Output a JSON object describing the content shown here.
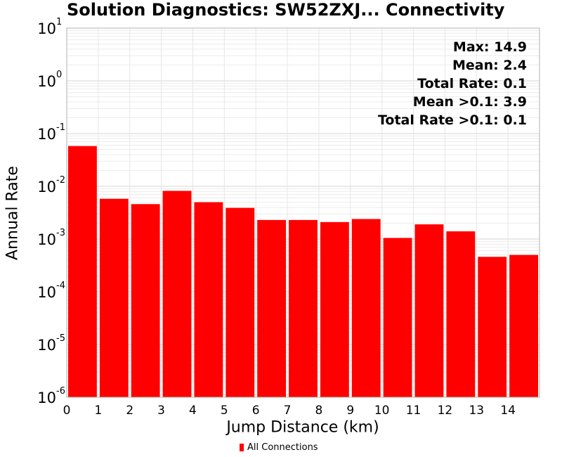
{
  "chart_data": {
    "type": "bar",
    "title": "Solution Diagnostics: SW52ZXJ... Connectivity",
    "xlabel": "Jump Distance (km)",
    "ylabel": "Annual Rate",
    "xlim": [
      0,
      15
    ],
    "ylim": [
      1e-06,
      10
    ],
    "y_scale": "log",
    "x_tick_labels": [
      "0",
      "1",
      "2",
      "3",
      "4",
      "5",
      "6",
      "7",
      "8",
      "9",
      "10",
      "11",
      "12",
      "13",
      "14"
    ],
    "y_tick_labels": [
      {
        "base": "10",
        "exp": "-6"
      },
      {
        "base": "10",
        "exp": "-5"
      },
      {
        "base": "10",
        "exp": "-4"
      },
      {
        "base": "10",
        "exp": "-3"
      },
      {
        "base": "10",
        "exp": "-2"
      },
      {
        "base": "10",
        "exp": "-1"
      },
      {
        "base": "10",
        "exp": "0"
      },
      {
        "base": "10",
        "exp": "1"
      }
    ],
    "grid": true,
    "series": [
      {
        "name": "All Connections",
        "color": "#ff0000",
        "bins": [
          {
            "x0": 0,
            "x1": 1,
            "value": 0.058
          },
          {
            "x0": 1,
            "x1": 2,
            "value": 0.0058
          },
          {
            "x0": 2,
            "x1": 3,
            "value": 0.0046
          },
          {
            "x0": 3,
            "x1": 4,
            "value": 0.0082
          },
          {
            "x0": 4,
            "x1": 5,
            "value": 0.005
          },
          {
            "x0": 5,
            "x1": 6,
            "value": 0.0039
          },
          {
            "x0": 6,
            "x1": 7,
            "value": 0.0023
          },
          {
            "x0": 7,
            "x1": 8,
            "value": 0.0023
          },
          {
            "x0": 8,
            "x1": 9,
            "value": 0.0021
          },
          {
            "x0": 9,
            "x1": 10,
            "value": 0.0024
          },
          {
            "x0": 10,
            "x1": 11,
            "value": 0.00105
          },
          {
            "x0": 11,
            "x1": 12,
            "value": 0.0019
          },
          {
            "x0": 12,
            "x1": 13,
            "value": 0.0014
          },
          {
            "x0": 13,
            "x1": 14,
            "value": 0.00046
          },
          {
            "x0": 14,
            "x1": 15,
            "value": 0.0005
          }
        ]
      }
    ],
    "annotations": [
      "Max: 14.9",
      "Mean: 2.4",
      "Total Rate: 0.1",
      "Mean >0.1: 3.9",
      "Total Rate >0.1: 0.1"
    ],
    "legend_position": "bottom-center"
  }
}
